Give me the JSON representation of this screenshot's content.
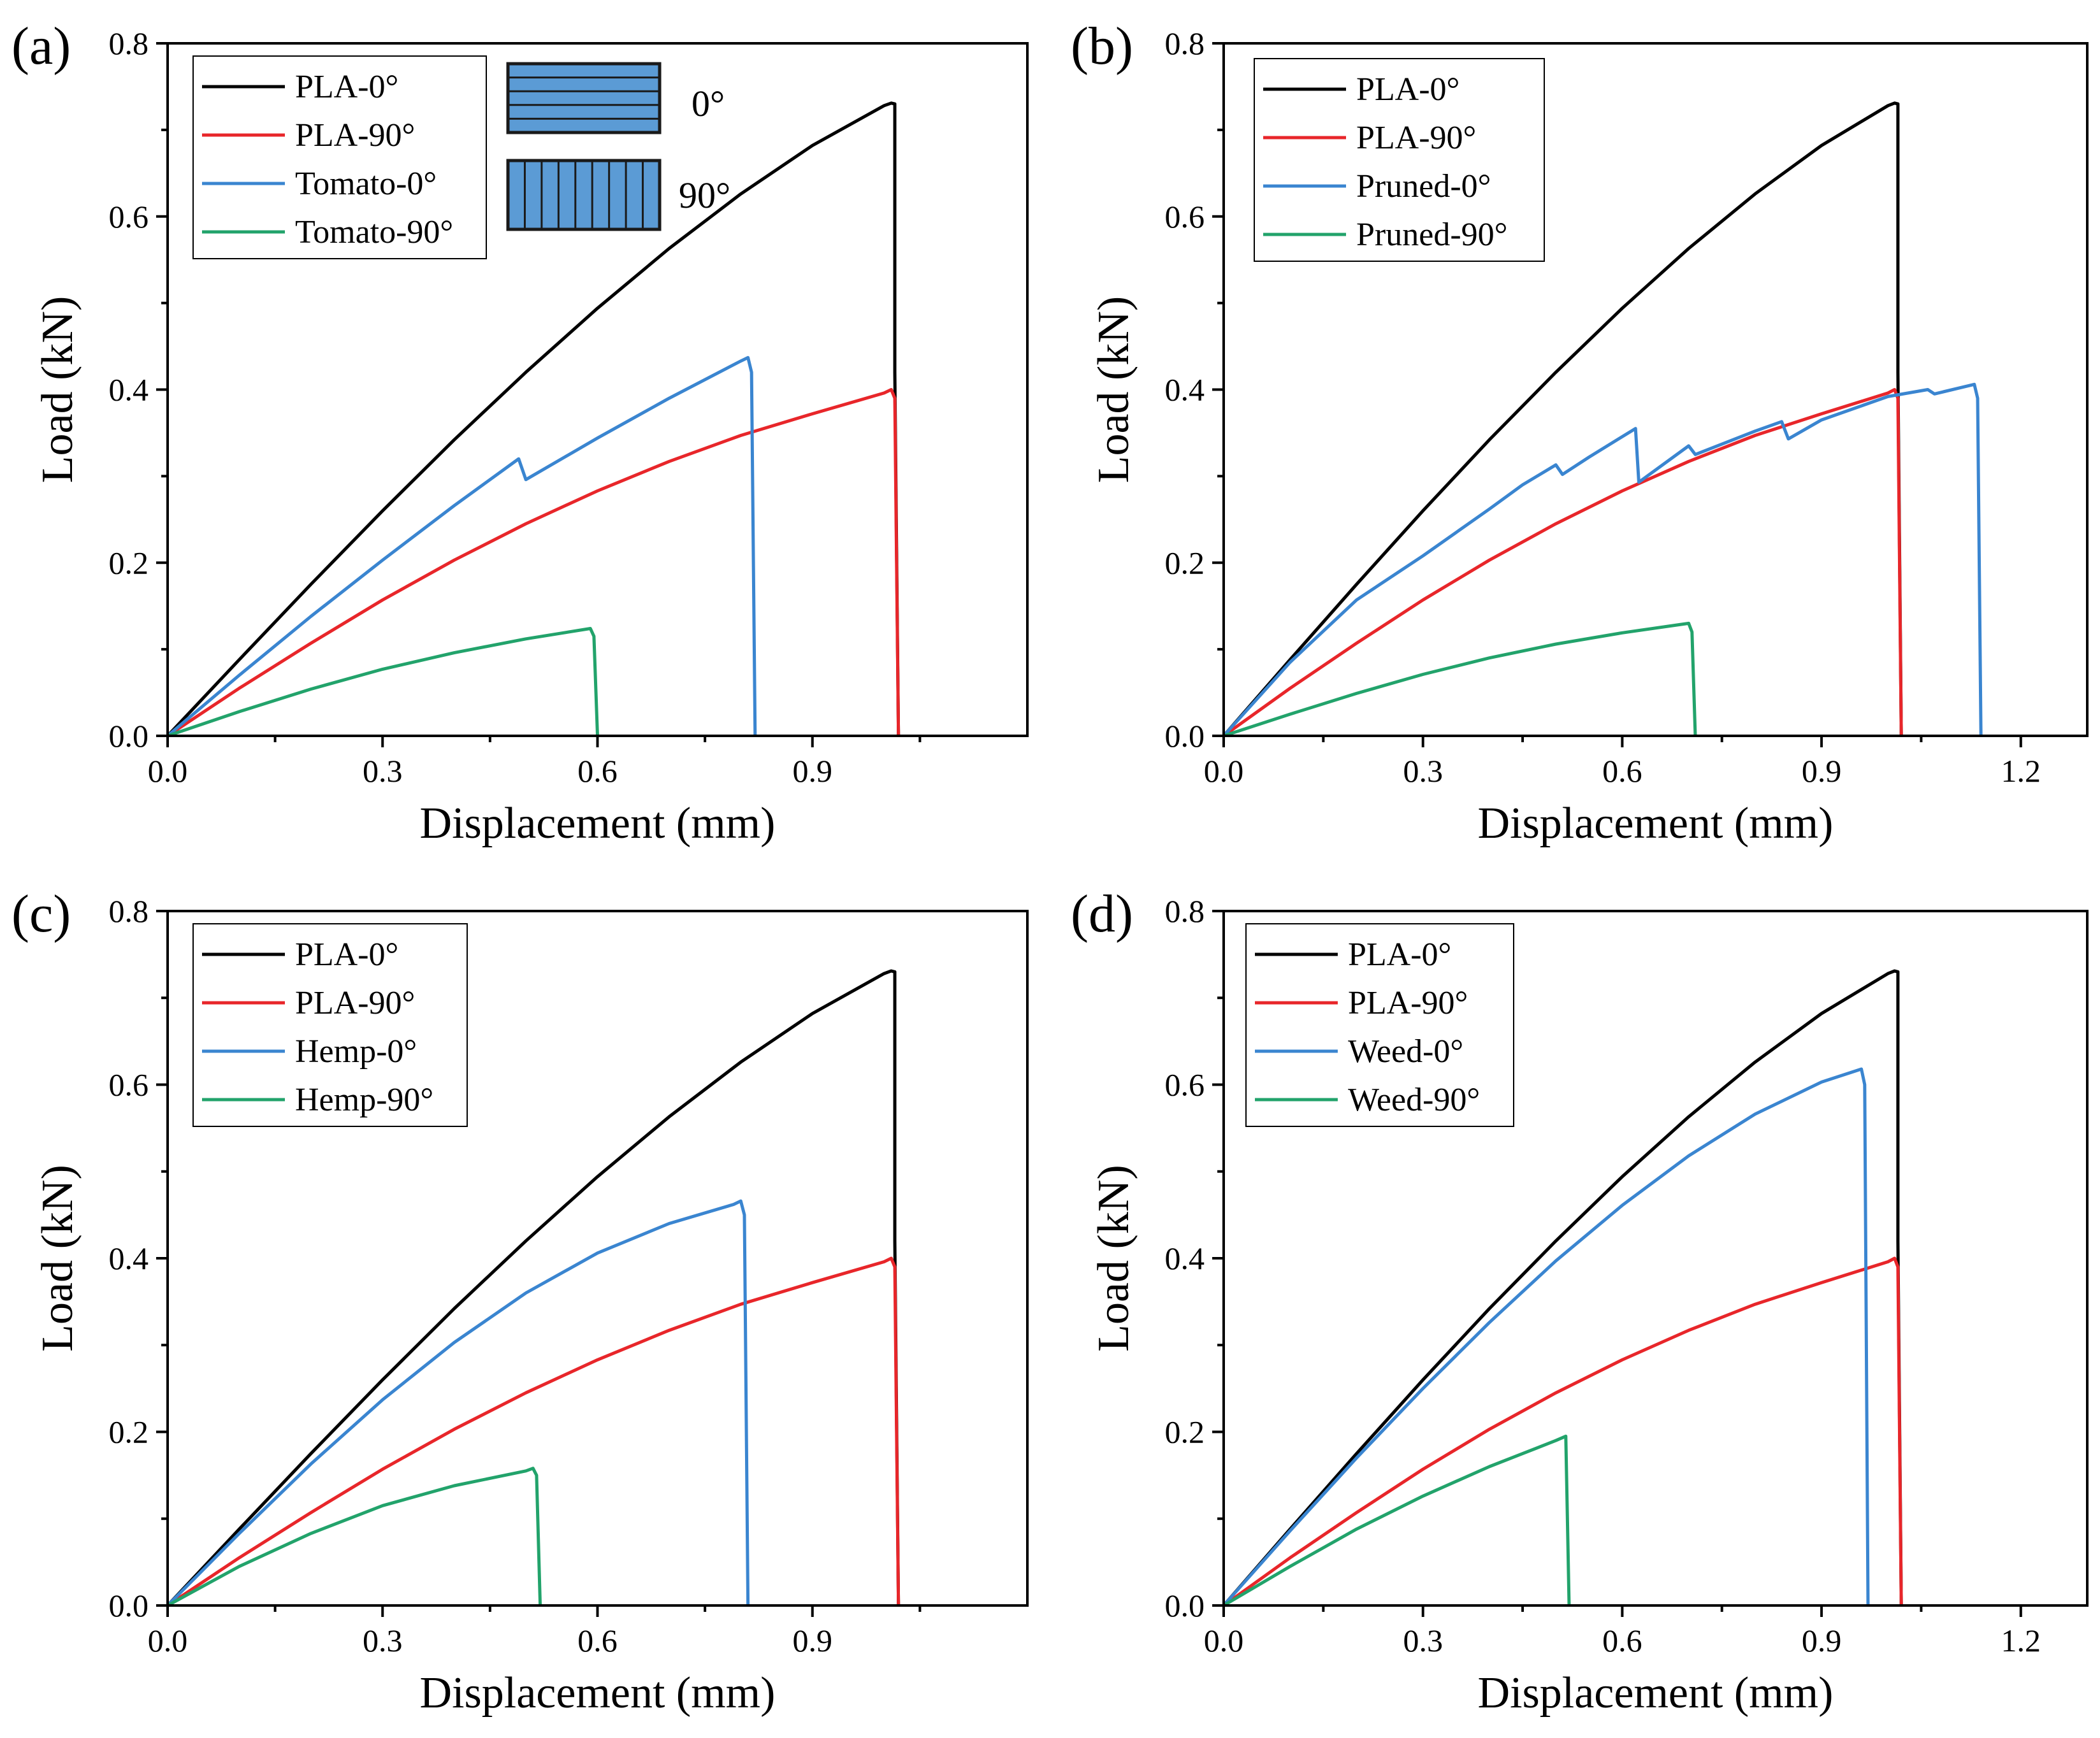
{
  "figure": {
    "panels": [
      {
        "label": "(a)",
        "type": "line",
        "xlabel": "Displacement (mm)",
        "ylabel": "Load (kN)",
        "xlim": [
          0,
          1.2
        ],
        "ylim": [
          0,
          0.8
        ],
        "xticks": [
          "0.0",
          "0.3",
          "0.6",
          "0.9"
        ],
        "xtick_values": [
          0,
          0.3,
          0.6,
          0.9
        ],
        "yticks": [
          "0.0",
          "0.2",
          "0.4",
          "0.6",
          "0.8"
        ],
        "ytick_values": [
          0,
          0.2,
          0.4,
          0.6,
          0.8
        ],
        "orientation_inset": {
          "label_0": "0°",
          "label_90": "90°"
        },
        "series": [
          {
            "name": "PLA-0°",
            "color": "#000000",
            "x": [
              0,
              0.1,
              0.2,
              0.3,
              0.4,
              0.5,
              0.6,
              0.7,
              0.8,
              0.9,
              1.0,
              1.01,
              1.015,
              1.015,
              1.02
            ],
            "y": [
              0,
              0.088,
              0.175,
              0.26,
              0.342,
              0.42,
              0.494,
              0.563,
              0.626,
              0.682,
              0.728,
              0.731,
              0.73,
              0.42,
              0
            ]
          },
          {
            "name": "PLA-90°",
            "color": "#e8262a",
            "x": [
              0,
              0.1,
              0.2,
              0.3,
              0.4,
              0.5,
              0.6,
              0.7,
              0.8,
              0.9,
              1.0,
              1.01,
              1.015,
              1.02
            ],
            "y": [
              0,
              0.055,
              0.107,
              0.157,
              0.203,
              0.245,
              0.283,
              0.317,
              0.347,
              0.372,
              0.396,
              0.4,
              0.39,
              0
            ]
          },
          {
            "name": "Tomato-0°",
            "color": "#3a85d0",
            "x": [
              0,
              0.1,
              0.2,
              0.3,
              0.4,
              0.49,
              0.5,
              0.6,
              0.7,
              0.8,
              0.81,
              0.815,
              0.82
            ],
            "y": [
              0,
              0.07,
              0.138,
              0.203,
              0.266,
              0.32,
              0.296,
              0.344,
              0.39,
              0.433,
              0.437,
              0.42,
              0
            ]
          },
          {
            "name": "Tomato-90°",
            "color": "#22a36b",
            "x": [
              0,
              0.1,
              0.2,
              0.3,
              0.4,
              0.5,
              0.59,
              0.595,
              0.6
            ],
            "y": [
              0,
              0.028,
              0.054,
              0.077,
              0.096,
              0.112,
              0.124,
              0.115,
              0
            ]
          }
        ]
      },
      {
        "label": "(b)",
        "type": "line",
        "xlabel": "Displacement (mm)",
        "ylabel": "Load (kN)",
        "xlim": [
          0,
          1.3
        ],
        "ylim": [
          0,
          0.8
        ],
        "xticks": [
          "0.0",
          "0.3",
          "0.6",
          "0.9",
          "1.2"
        ],
        "xtick_values": [
          0,
          0.3,
          0.6,
          0.9,
          1.2
        ],
        "yticks": [
          "0.0",
          "0.2",
          "0.4",
          "0.6",
          "0.8"
        ],
        "ytick_values": [
          0,
          0.2,
          0.4,
          0.6,
          0.8
        ],
        "series": [
          {
            "name": "PLA-0°",
            "color": "#000000",
            "x": [
              0,
              0.1,
              0.2,
              0.3,
              0.4,
              0.5,
              0.6,
              0.7,
              0.8,
              0.9,
              1.0,
              1.01,
              1.015,
              1.015,
              1.02
            ],
            "y": [
              0,
              0.088,
              0.175,
              0.26,
              0.342,
              0.42,
              0.494,
              0.563,
              0.626,
              0.682,
              0.728,
              0.731,
              0.73,
              0.42,
              0
            ]
          },
          {
            "name": "PLA-90°",
            "color": "#e8262a",
            "x": [
              0,
              0.1,
              0.2,
              0.3,
              0.4,
              0.5,
              0.6,
              0.7,
              0.8,
              0.9,
              1.0,
              1.01,
              1.015,
              1.02
            ],
            "y": [
              0,
              0.055,
              0.107,
              0.157,
              0.203,
              0.245,
              0.283,
              0.317,
              0.347,
              0.372,
              0.396,
              0.4,
              0.39,
              0
            ]
          },
          {
            "name": "Pruned-0°",
            "color": "#3a85d0",
            "x": [
              0,
              0.1,
              0.2,
              0.3,
              0.4,
              0.45,
              0.5,
              0.51,
              0.55,
              0.62,
              0.625,
              0.7,
              0.71,
              0.8,
              0.84,
              0.85,
              0.9,
              1.0,
              1.06,
              1.07,
              1.13,
              1.135,
              1.14
            ],
            "y": [
              0,
              0.085,
              0.157,
              0.208,
              0.262,
              0.29,
              0.313,
              0.302,
              0.322,
              0.355,
              0.293,
              0.335,
              0.325,
              0.352,
              0.363,
              0.343,
              0.365,
              0.392,
              0.4,
              0.395,
              0.406,
              0.39,
              0
            ]
          },
          {
            "name": "Pruned-90°",
            "color": "#22a36b",
            "x": [
              0,
              0.1,
              0.2,
              0.3,
              0.4,
              0.5,
              0.6,
              0.7,
              0.705,
              0.71
            ],
            "y": [
              0,
              0.025,
              0.049,
              0.071,
              0.09,
              0.106,
              0.119,
              0.13,
              0.12,
              0
            ]
          }
        ]
      },
      {
        "label": "(c)",
        "type": "line",
        "xlabel": "Displacement (mm)",
        "ylabel": "Load (kN)",
        "xlim": [
          0,
          1.2
        ],
        "ylim": [
          0,
          0.8
        ],
        "xticks": [
          "0.0",
          "0.3",
          "0.6",
          "0.9"
        ],
        "xtick_values": [
          0,
          0.3,
          0.6,
          0.9
        ],
        "yticks": [
          "0.0",
          "0.2",
          "0.4",
          "0.6",
          "0.8"
        ],
        "ytick_values": [
          0,
          0.2,
          0.4,
          0.6,
          0.8
        ],
        "series": [
          {
            "name": "PLA-0°",
            "color": "#000000",
            "x": [
              0,
              0.1,
              0.2,
              0.3,
              0.4,
              0.5,
              0.6,
              0.7,
              0.8,
              0.9,
              1.0,
              1.01,
              1.015,
              1.015,
              1.02
            ],
            "y": [
              0,
              0.088,
              0.175,
              0.26,
              0.342,
              0.42,
              0.494,
              0.563,
              0.626,
              0.682,
              0.728,
              0.731,
              0.73,
              0.42,
              0
            ]
          },
          {
            "name": "PLA-90°",
            "color": "#e8262a",
            "x": [
              0,
              0.1,
              0.2,
              0.3,
              0.4,
              0.5,
              0.6,
              0.7,
              0.8,
              0.9,
              1.0,
              1.01,
              1.015,
              1.02
            ],
            "y": [
              0,
              0.055,
              0.107,
              0.157,
              0.203,
              0.245,
              0.283,
              0.317,
              0.347,
              0.372,
              0.396,
              0.4,
              0.39,
              0
            ]
          },
          {
            "name": "Hemp-0°",
            "color": "#3a85d0",
            "x": [
              0,
              0.1,
              0.2,
              0.3,
              0.4,
              0.5,
              0.6,
              0.7,
              0.79,
              0.8,
              0.805,
              0.81
            ],
            "y": [
              0,
              0.083,
              0.163,
              0.237,
              0.303,
              0.36,
              0.406,
              0.44,
              0.462,
              0.466,
              0.45,
              0
            ]
          },
          {
            "name": "Hemp-90°",
            "color": "#22a36b",
            "x": [
              0,
              0.1,
              0.2,
              0.3,
              0.4,
              0.5,
              0.51,
              0.515,
              0.52
            ],
            "y": [
              0,
              0.045,
              0.083,
              0.115,
              0.138,
              0.155,
              0.158,
              0.15,
              0
            ]
          }
        ]
      },
      {
        "label": "(d)",
        "type": "line",
        "xlabel": "Displacement (mm)",
        "ylabel": "Load (kN)",
        "xlim": [
          0,
          1.3
        ],
        "ylim": [
          0,
          0.8
        ],
        "xticks": [
          "0.0",
          "0.3",
          "0.6",
          "0.9",
          "1.2"
        ],
        "xtick_values": [
          0,
          0.3,
          0.6,
          0.9,
          1.2
        ],
        "yticks": [
          "0.0",
          "0.2",
          "0.4",
          "0.6",
          "0.8"
        ],
        "ytick_values": [
          0,
          0.2,
          0.4,
          0.6,
          0.8
        ],
        "series": [
          {
            "name": "PLA-0°",
            "color": "#000000",
            "x": [
              0,
              0.1,
              0.2,
              0.3,
              0.4,
              0.5,
              0.6,
              0.7,
              0.8,
              0.9,
              1.0,
              1.01,
              1.015,
              1.015,
              1.02
            ],
            "y": [
              0,
              0.088,
              0.175,
              0.26,
              0.342,
              0.42,
              0.494,
              0.563,
              0.626,
              0.682,
              0.728,
              0.731,
              0.73,
              0.42,
              0
            ]
          },
          {
            "name": "PLA-90°",
            "color": "#e8262a",
            "x": [
              0,
              0.1,
              0.2,
              0.3,
              0.4,
              0.5,
              0.6,
              0.7,
              0.8,
              0.9,
              1.0,
              1.01,
              1.015,
              1.02
            ],
            "y": [
              0,
              0.055,
              0.107,
              0.157,
              0.203,
              0.245,
              0.283,
              0.317,
              0.347,
              0.372,
              0.396,
              0.4,
              0.39,
              0
            ]
          },
          {
            "name": "Weed-0°",
            "color": "#3a85d0",
            "x": [
              0,
              0.1,
              0.2,
              0.3,
              0.4,
              0.5,
              0.6,
              0.7,
              0.8,
              0.9,
              0.96,
              0.965,
              0.97
            ],
            "y": [
              0,
              0.086,
              0.17,
              0.25,
              0.326,
              0.397,
              0.461,
              0.518,
              0.566,
              0.603,
              0.618,
              0.6,
              0
            ]
          },
          {
            "name": "Weed-90°",
            "color": "#22a36b",
            "x": [
              0,
              0.1,
              0.2,
              0.3,
              0.4,
              0.5,
              0.515,
              0.52
            ],
            "y": [
              0,
              0.045,
              0.088,
              0.126,
              0.16,
              0.19,
              0.195,
              0
            ]
          }
        ]
      }
    ]
  }
}
